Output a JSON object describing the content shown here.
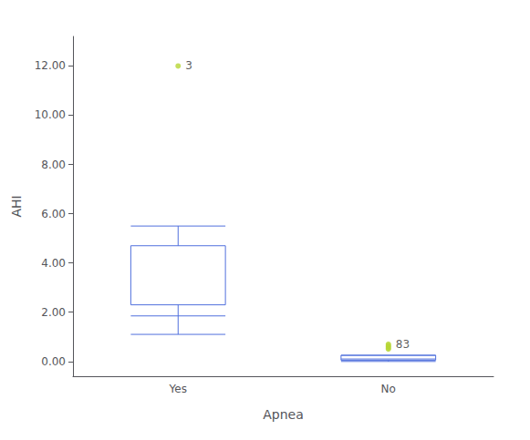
{
  "chart_data": {
    "type": "box",
    "categories": [
      "Yes",
      "No"
    ],
    "xlabel": "Apnea",
    "ylabel": "AHI",
    "ylim": [
      -0.6,
      13.2
    ],
    "yticks": [
      {
        "value": 0.0,
        "label": "0.00"
      },
      {
        "value": 2.0,
        "label": "2.00"
      },
      {
        "value": 4.0,
        "label": "4.00"
      },
      {
        "value": 6.0,
        "label": "6.00"
      },
      {
        "value": 8.0,
        "label": "8.00"
      },
      {
        "value": 10.0,
        "label": "10.00"
      },
      {
        "value": 12.0,
        "label": "12.00"
      }
    ],
    "grid": false,
    "boxes": [
      {
        "q1": 2.3,
        "median": 1.85,
        "q3": 4.7,
        "whisker_low": 1.1,
        "whisker_high": 5.5,
        "outliers": [
          12.0
        ],
        "outlier_label": "3"
      },
      {
        "q1": 0.05,
        "median": 0.1,
        "q3": 0.25,
        "whisker_low": 0.0,
        "whisker_high": 0.25,
        "outliers": [
          0.5,
          0.55,
          0.6,
          0.65,
          0.7
        ],
        "outlier_label": "83"
      }
    ]
  }
}
